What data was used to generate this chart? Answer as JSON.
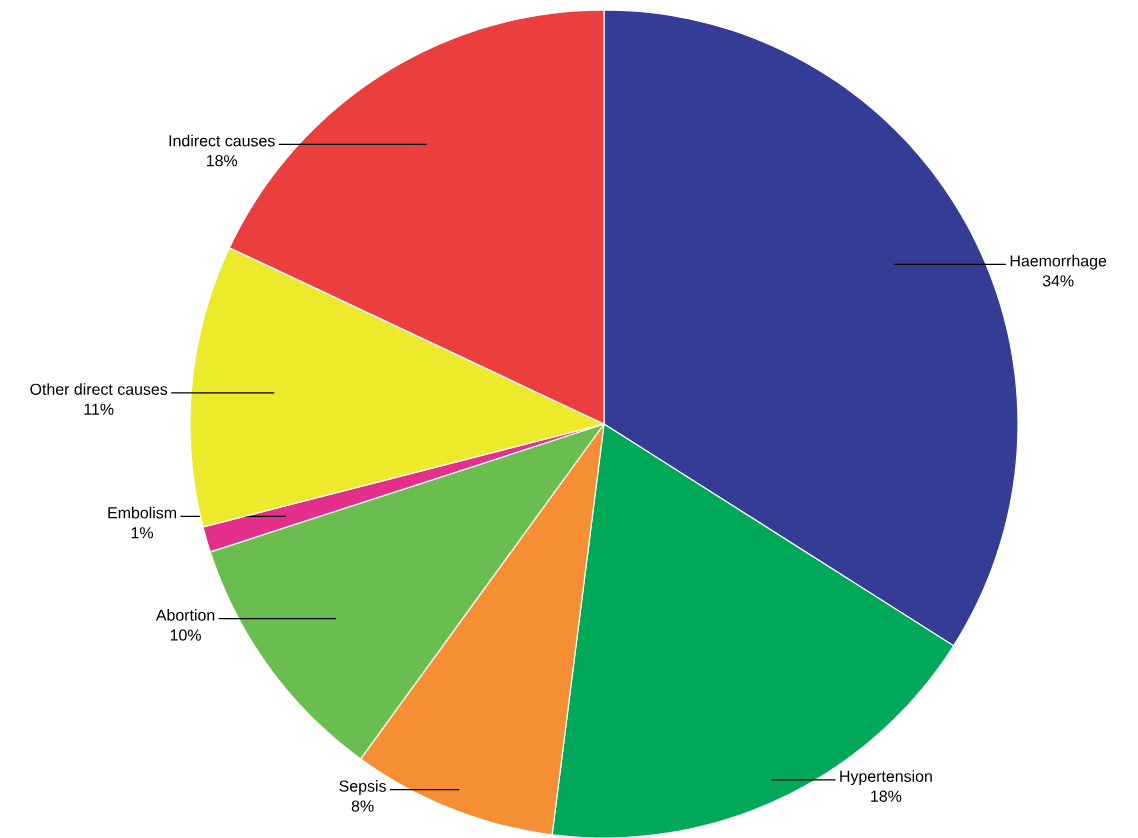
{
  "chart_data": {
    "type": "pie",
    "categories": [
      "Haemorrhage",
      "Hypertension",
      "Sepsis",
      "Abortion",
      "Embolism",
      "Other direct causes",
      "Indirect causes"
    ],
    "values": [
      34,
      18,
      8,
      10,
      1,
      11,
      18
    ],
    "value_labels": [
      "34%",
      "18%",
      "8%",
      "10%",
      "1%",
      "11%",
      "18%"
    ],
    "colors": [
      "#353c96",
      "#00a85a",
      "#f68e33",
      "#6abd4f",
      "#e5308b",
      "#ecea2b",
      "#eb3f3f"
    ]
  }
}
